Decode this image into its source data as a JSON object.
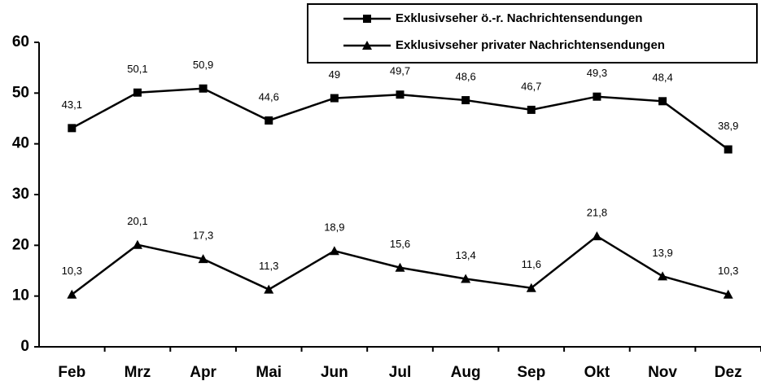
{
  "chart_data": {
    "type": "line",
    "categories": [
      "Feb",
      "Mrz",
      "Apr",
      "Mai",
      "Jun",
      "Jul",
      "Aug",
      "Sep",
      "Okt",
      "Nov",
      "Dez"
    ],
    "series": [
      {
        "name": "Exklusivseher ö.-r. Nachrichtensendungen",
        "color": "#000000",
        "marker": "square",
        "values": [
          43.1,
          50.1,
          50.9,
          44.6,
          49,
          49.7,
          48.6,
          46.7,
          49.3,
          48.4,
          38.9
        ],
        "value_labels": [
          "43,1",
          "50,1",
          "50,9",
          "44,6",
          "49",
          "49,7",
          "48,6",
          "46,7",
          "49,3",
          "48,4",
          "38,9"
        ]
      },
      {
        "name": "Exklusivseher privater Nachrichtensendungen",
        "color": "#000000",
        "marker": "triangle",
        "values": [
          10.3,
          20.1,
          17.3,
          11.3,
          18.9,
          15.6,
          13.4,
          11.6,
          21.8,
          13.9,
          10.3
        ],
        "value_labels": [
          "10,3",
          "20,1",
          "17,3",
          "11,3",
          "18,9",
          "15,6",
          "13,4",
          "11,6",
          "21,8",
          "13,9",
          "10,3"
        ]
      }
    ],
    "ylim": [
      0,
      60
    ],
    "yticks": [
      0,
      10,
      20,
      30,
      40,
      50,
      60
    ],
    "grid": false,
    "legend": "upper right"
  }
}
